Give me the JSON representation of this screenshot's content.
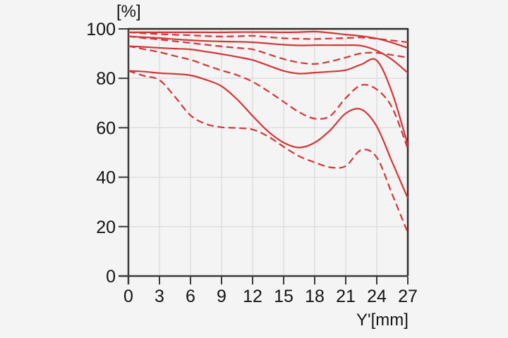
{
  "page": {
    "background": "#f4f4f5",
    "text_color": "#141414"
  },
  "chart_data": {
    "type": "line",
    "title": "",
    "ylabel": "[%]",
    "xlabel": "Y'[mm]",
    "xlim": [
      0,
      27
    ],
    "ylim": [
      0,
      100
    ],
    "x_ticks": [
      0,
      3,
      6,
      9,
      12,
      15,
      18,
      21,
      24,
      27
    ],
    "y_ticks": [
      0,
      20,
      40,
      60,
      80,
      100
    ],
    "grid": true,
    "legend_position": "none",
    "line_color": "#d63535",
    "grid_color": "#dcdcdf",
    "axis_color": "#3a3a3a",
    "border_color": "#2d2d2d",
    "x": [
      0,
      1.5,
      3,
      4.5,
      6,
      7.5,
      9,
      10.5,
      12,
      13.5,
      15,
      16.5,
      18,
      19.5,
      21,
      22.5,
      24,
      25.5,
      27
    ],
    "series": [
      {
        "name": "curve-1-solid",
        "style": "solid",
        "values": [
          98.6,
          98.6,
          98.6,
          98.6,
          98.6,
          98.6,
          98.6,
          98.7,
          98.7,
          98.7,
          98.6,
          98.7,
          98.9,
          98.4,
          97.7,
          97.1,
          96.1,
          94.4,
          92.3
        ]
      },
      {
        "name": "curve-1-dashed",
        "style": "dashed",
        "values": [
          98.6,
          98.2,
          97.9,
          97.6,
          97.4,
          97.1,
          96.9,
          97.0,
          97.2,
          96.7,
          96.2,
          96.0,
          95.9,
          96.1,
          96.3,
          96.5,
          96.0,
          95.3,
          94.6
        ]
      },
      {
        "name": "curve-2-solid",
        "style": "solid",
        "values": [
          97.0,
          96.6,
          96.3,
          95.8,
          95.4,
          95.1,
          94.9,
          94.8,
          94.6,
          94.1,
          93.6,
          93.3,
          93.4,
          93.4,
          93.4,
          93.2,
          91.2,
          87.5,
          82.2
        ]
      },
      {
        "name": "curve-2-dashed",
        "style": "dashed",
        "values": [
          97.0,
          96.3,
          95.7,
          95.0,
          94.3,
          93.6,
          92.9,
          92.3,
          91.7,
          89.8,
          87.8,
          86.4,
          85.8,
          86.8,
          88.4,
          90.1,
          90.3,
          89.4,
          88.4
        ]
      },
      {
        "name": "curve-3-solid",
        "style": "solid",
        "values": [
          93.0,
          92.7,
          92.3,
          92.0,
          91.7,
          90.8,
          89.8,
          88.7,
          87.4,
          85.2,
          83.0,
          81.9,
          82.3,
          82.7,
          83.3,
          85.6,
          87.2,
          74.0,
          53.0
        ]
      },
      {
        "name": "curve-3-dashed",
        "style": "dashed",
        "values": [
          93.0,
          91.8,
          90.6,
          89.0,
          87.5,
          85.3,
          83.2,
          81.3,
          78.6,
          74.8,
          70.5,
          66.3,
          63.7,
          64.8,
          72.0,
          77.2,
          75.5,
          68.0,
          51.5
        ]
      },
      {
        "name": "curve-4-solid",
        "style": "solid",
        "values": [
          83.0,
          82.7,
          82.1,
          81.8,
          81.2,
          79.4,
          76.8,
          71.5,
          64.8,
          58.5,
          54.0,
          52.0,
          54.0,
          59.0,
          65.8,
          67.4,
          60.5,
          46.0,
          31.5
        ]
      },
      {
        "name": "curve-4-dashed",
        "style": "dashed",
        "values": [
          83.0,
          81.0,
          79.3,
          72.5,
          65.0,
          61.5,
          60.2,
          59.9,
          59.3,
          56.5,
          52.3,
          48.5,
          46.0,
          44.0,
          44.5,
          51.0,
          48.0,
          33.0,
          17.5
        ]
      }
    ]
  }
}
